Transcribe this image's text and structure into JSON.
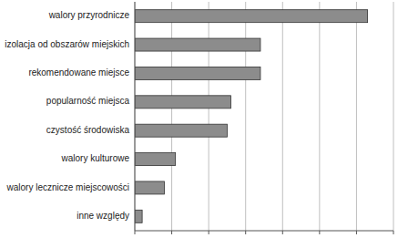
{
  "chart_data": {
    "type": "bar",
    "orientation": "horizontal",
    "categories": [
      "walory przyrodnicze",
      "izolacja od obszarów miejskich",
      "rekomendowane miejsce",
      "popularność miejsca",
      "czystość środowiska",
      "walory kulturowe",
      "walory lecznicze miejscowości",
      "inne względy"
    ],
    "values": [
      6.3,
      3.4,
      3.4,
      2.6,
      2.5,
      1.1,
      0.8,
      0.2
    ],
    "color": "#8c8c8c",
    "xlim": [
      0,
      7
    ],
    "xticks": [
      0,
      1,
      2,
      3,
      4,
      5,
      6,
      7
    ],
    "grid": true,
    "tick_labels": "y"
  }
}
